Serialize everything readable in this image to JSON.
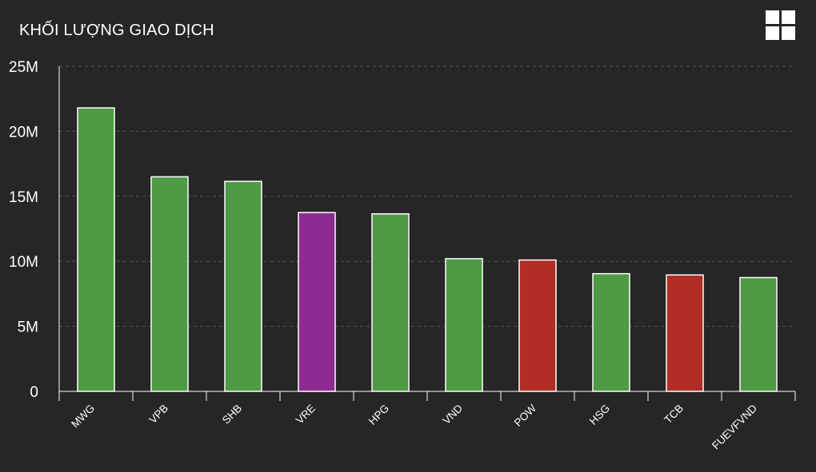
{
  "header": {
    "title": "KHỐI LƯỢNG GIAO DỊCH",
    "menu_icon": "grid-menu-icon"
  },
  "colors": {
    "background": "#262626",
    "up": "#4f9a45",
    "down": "#b02e25",
    "ceiling": "#8e2b93",
    "bar_stroke": "#ffffff",
    "grid": "#555555",
    "axis": "#ffffff"
  },
  "chart_data": {
    "type": "bar",
    "title": "KHỐI LƯỢNG GIAO DỊCH",
    "xlabel": "",
    "ylabel": "",
    "categories": [
      "MWG",
      "VPB",
      "SHB",
      "VRE",
      "HPG",
      "VND",
      "POW",
      "HSG",
      "TCB",
      "FUEVFVND"
    ],
    "values": [
      21800000,
      16500000,
      16150000,
      13750000,
      13650000,
      10200000,
      10100000,
      9050000,
      8950000,
      8750000
    ],
    "bar_status": [
      "up",
      "up",
      "up",
      "ceiling",
      "up",
      "up",
      "down",
      "up",
      "down",
      "up"
    ],
    "ylim": [
      0,
      25000000
    ],
    "y_ticks": [
      {
        "value": 0,
        "label": "0"
      },
      {
        "value": 5000000,
        "label": "5M"
      },
      {
        "value": 10000000,
        "label": "10M"
      },
      {
        "value": 15000000,
        "label": "15M"
      },
      {
        "value": 20000000,
        "label": "20M"
      },
      {
        "value": 25000000,
        "label": "25M"
      }
    ],
    "grid": true,
    "grid_style": "dashed",
    "legend": "none"
  }
}
